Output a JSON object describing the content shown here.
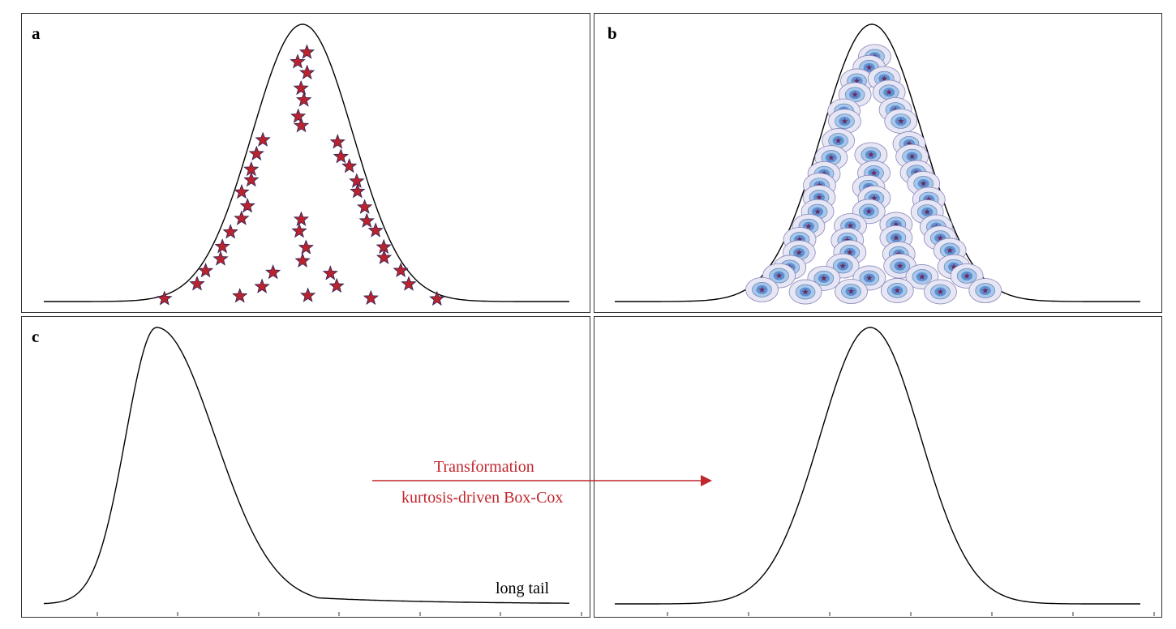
{
  "panels": {
    "a": {
      "letter": "a",
      "marker": "star",
      "curve": "symmetric bell"
    },
    "b": {
      "letter": "b",
      "marker": "cell",
      "curve": "symmetric bell"
    },
    "c": {
      "letter": "c",
      "curve": "right-skewed",
      "tail_label": "long tail"
    },
    "d": {
      "letter": "",
      "curve": "symmetric bell"
    }
  },
  "transformation": {
    "top_label": "Transformation",
    "bottom_label": "kurtosis-driven Box-Cox"
  },
  "colors": {
    "star_fill": "#b8232e",
    "star_stroke": "#2b2458",
    "cell_outer": "#e6e6f5",
    "cell_ring": "#a7c7ea",
    "cell_core": "#5f8fd0",
    "accent_red": "#c0262d",
    "curve": "#000000"
  }
}
